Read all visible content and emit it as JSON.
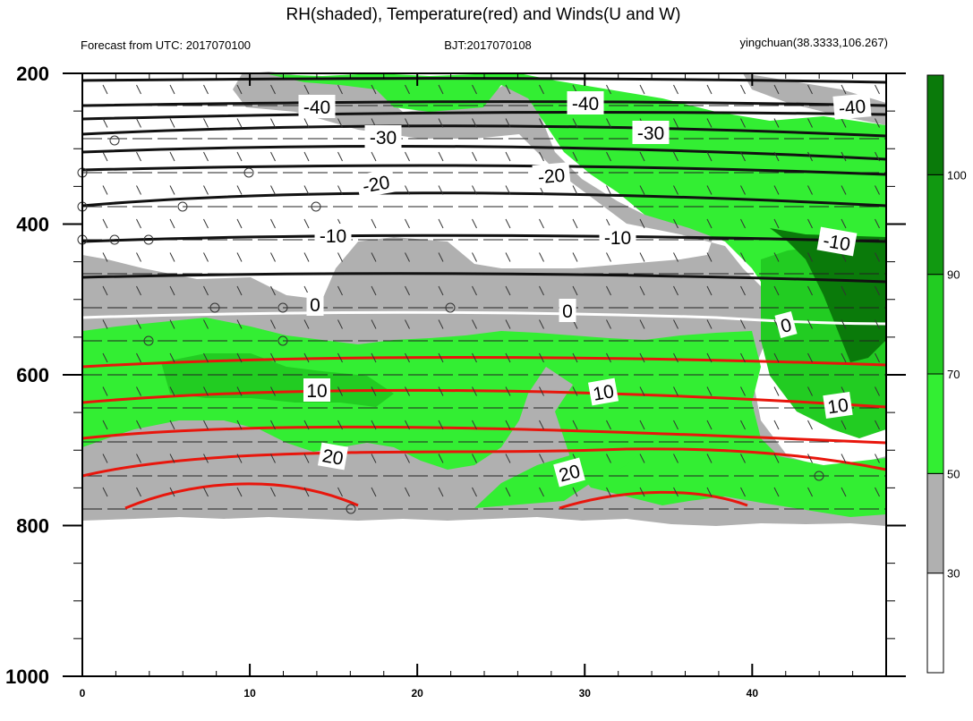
{
  "title": "RH(shaded), Temperature(red) and Winds(U and W)",
  "subtitle_left": "Forecast from UTC: 2017070100",
  "subtitle_center": "BJT:2017070108",
  "subtitle_right": "yingchuan(38.3333,106.267)",
  "chart_data": {
    "type": "contour",
    "x_ticks": [
      "0",
      "10",
      "20",
      "30",
      "40"
    ],
    "x_range": [
      0,
      48
    ],
    "y_ticks": [
      "200",
      "400",
      "600",
      "800",
      "1000"
    ],
    "y_range": [
      200,
      1000
    ],
    "y_inverted": true,
    "colorbar": {
      "levels": [
        "30",
        "50",
        "70",
        "90",
        "100"
      ],
      "colors": [
        "#ffffff",
        "#b0b0b0",
        "#33ee33",
        "#22cc22",
        "#119911",
        "#0a7a0a"
      ]
    },
    "temperature_contours": [
      {
        "value": -40,
        "color": "#111111",
        "labels": [
          "-40",
          "-40",
          "-40"
        ]
      },
      {
        "value": -30,
        "color": "#111111",
        "labels": [
          "-30",
          "-30"
        ]
      },
      {
        "value": -20,
        "color": "#111111",
        "labels": [
          "-20",
          "-20"
        ]
      },
      {
        "value": -10,
        "color": "#111111",
        "labels": [
          "-10",
          "-10",
          "-10"
        ]
      },
      {
        "value": 0,
        "color": "#ffffff",
        "labels": [
          "0",
          "0",
          "0"
        ]
      },
      {
        "value": 10,
        "color": "#e8160c",
        "labels": [
          "10",
          "10",
          "10"
        ]
      },
      {
        "value": 20,
        "color": "#e8160c",
        "labels": [
          "20",
          "20"
        ]
      }
    ]
  }
}
